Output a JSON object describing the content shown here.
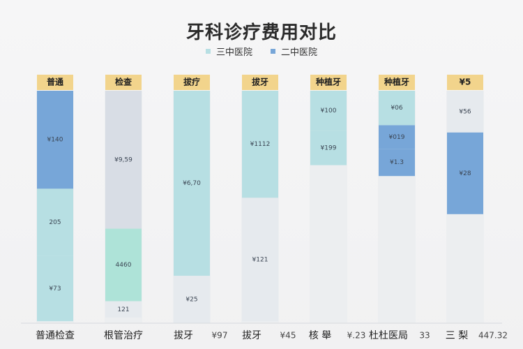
{
  "colors": {
    "series1": "#b7dfe3",
    "series2": "#77a6d8",
    "header": "#f2d48c",
    "slate": "#d8dde5",
    "mint": "#aee3d8",
    "light": "#e6eaee"
  },
  "chart_data": {
    "type": "bar",
    "title": "牙科诊疗费用对比",
    "legend": [
      {
        "name": "三中医院",
        "color": "#b7dfe3"
      },
      {
        "name": "二中医院",
        "color": "#77a6d8"
      }
    ],
    "headers": [
      "普通",
      "检查",
      "拔疗",
      "拔牙",
      "种植牙",
      "种植牙",
      "¥5"
    ],
    "categories": [
      "普通检查",
      "根管治疗",
      "拔牙",
      "拔牙",
      "核 舉",
      "杜杜医局",
      "三 梨"
    ],
    "category_values": [
      "",
      "",
      "¥97",
      "¥45",
      "¥.23",
      "33",
      "447.32"
    ],
    "segments": [
      [
        {
          "label": "¥140",
          "color": "#77a6d8",
          "value": 54
        },
        {
          "label": "205",
          "color": "#b7dfe3",
          "value": 37
        },
        {
          "label": "¥73",
          "color": "#b7dfe3",
          "value": 36
        }
      ],
      [
        {
          "label": "¥9,59",
          "color": "#d8dde5",
          "value": 76
        },
        {
          "label": "4460",
          "color": "#aee3d8",
          "value": 40
        },
        {
          "label": "121",
          "color": "#e6eaee",
          "value": 9
        }
      ],
      [
        {
          "label": "¥6,70",
          "color": "#b7dfe3",
          "value": 102
        },
        {
          "label": "¥25",
          "color": "#e6eaee",
          "value": 26
        }
      ],
      [
        {
          "label": "¥1112",
          "color": "#b7dfe3",
          "value": 59
        },
        {
          "label": "¥121",
          "color": "#e6eaee",
          "value": 68
        }
      ],
      [
        {
          "label": "¥100",
          "color": "#b7dfe3",
          "value": 22
        },
        {
          "label": "¥199",
          "color": "#b7dfe3",
          "value": 19
        }
      ],
      [
        {
          "label": "¥06",
          "color": "#b7dfe3",
          "value": 19
        },
        {
          "label": "¥019",
          "color": "#77a6d8",
          "value": 13
        },
        {
          "label": "¥1.3",
          "color": "#77a6d8",
          "value": 15
        }
      ],
      [
        {
          "label": "¥56",
          "color": "#e6eaee",
          "value": 23
        },
        {
          "label": "¥28",
          "color": "#77a6d8",
          "value": 45
        }
      ]
    ]
  }
}
